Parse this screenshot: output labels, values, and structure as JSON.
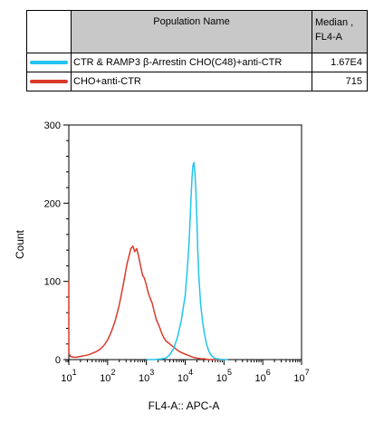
{
  "legend": {
    "header_name": "Population Name",
    "header_median_line1": "Median ,",
    "header_median_line2": "FL4-A",
    "rows": [
      {
        "name": "CTR & RAMP3 β-Arrestin CHO(C48)+anti-CTR",
        "median": "1.67E4",
        "color": "#22c4ee"
      },
      {
        "name": "CHO+anti-CTR",
        "median": "715",
        "color": "#d93a2b"
      }
    ]
  },
  "chart_data": {
    "type": "line",
    "title": "",
    "xlabel": "FL4-A:: APC-A",
    "ylabel": "Count",
    "xscale": "log",
    "xlim": [
      10,
      10000000
    ],
    "ylim": [
      0,
      300
    ],
    "yticks": [
      0,
      100,
      200,
      300
    ],
    "xticks": [
      {
        "base": "10",
        "exp": "1"
      },
      {
        "base": "10",
        "exp": "2"
      },
      {
        "base": "10",
        "exp": "3"
      },
      {
        "base": "10",
        "exp": "4"
      },
      {
        "base": "10",
        "exp": "5"
      },
      {
        "base": "10",
        "exp": "6"
      },
      {
        "base": "10",
        "exp": "7"
      }
    ],
    "series": [
      {
        "name": "CHO+anti-CTR",
        "color": "#d93a2b",
        "x": [
          7.5,
          7.8,
          8.1,
          8.5,
          9.5,
          11,
          13,
          16,
          20,
          25,
          32,
          40,
          50,
          63,
          80,
          100,
          126,
          158,
          200,
          251,
          316,
          398,
          450,
          501,
          560,
          630,
          708,
          794,
          891,
          1000,
          1122,
          1259,
          1413,
          1585,
          1778,
          1995,
          2239,
          2512,
          2818,
          3162,
          3548,
          3981,
          5012,
          6310,
          7943,
          10000,
          12589,
          15849,
          19953,
          25119,
          31623,
          39811,
          50119,
          63096,
          79433,
          100000
        ],
        "y": [
          28,
          100,
          60,
          20,
          8,
          4,
          3,
          3,
          4,
          5,
          6,
          8,
          10,
          13,
          18,
          25,
          36,
          50,
          70,
          95,
          122,
          142,
          145,
          138,
          142,
          132,
          120,
          108,
          104,
          95,
          85,
          78,
          72,
          62,
          52,
          46,
          40,
          33,
          28,
          24,
          22,
          20,
          16,
          12,
          9,
          7,
          5,
          3,
          2,
          1,
          1,
          0,
          0,
          0,
          0,
          0
        ]
      },
      {
        "name": "CTR & RAMP3 β-Arrestin CHO(C48)+anti-CTR",
        "color": "#22c4ee",
        "x": [
          1000,
          1585,
          2512,
          3162,
          3981,
          5012,
          6310,
          7943,
          10000,
          11220,
          12589,
          13335,
          14125,
          14962,
          15849,
          16788,
          17783,
          18836,
          19953,
          21135,
          22387,
          25119,
          28184,
          31623,
          35481,
          39811,
          44668,
          50119,
          56234,
          63096,
          70795,
          79433,
          100000,
          125893
        ],
        "y": [
          0,
          0,
          1,
          2,
          6,
          14,
          28,
          50,
          82,
          112,
          150,
          178,
          205,
          232,
          248,
          252,
          240,
          215,
          180,
          140,
          108,
          70,
          48,
          32,
          20,
          12,
          7,
          4,
          2,
          1,
          1,
          0,
          0,
          0
        ]
      }
    ]
  }
}
